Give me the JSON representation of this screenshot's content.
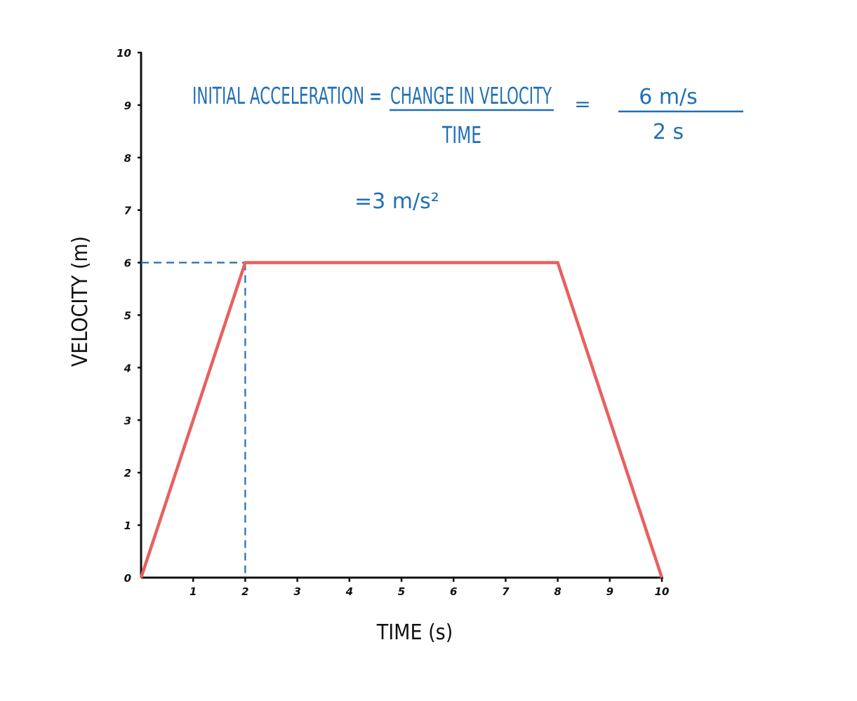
{
  "chart_data": {
    "type": "line",
    "title": "",
    "xlabel": "TIME (s)",
    "ylabel": "VELOCITY (m)",
    "xlim": [
      0,
      10
    ],
    "ylim": [
      0,
      10
    ],
    "x_ticks": [
      "1",
      "2",
      "3",
      "4",
      "5",
      "6",
      "7",
      "8",
      "9",
      "10"
    ],
    "y_ticks": [
      "0",
      "1",
      "2",
      "3",
      "4",
      "5",
      "6",
      "7",
      "8",
      "9",
      "10"
    ],
    "grid": false,
    "legend": null,
    "series": [
      {
        "name": "velocity",
        "color": "#e8605f",
        "x": [
          0,
          2,
          8,
          10
        ],
        "y": [
          0,
          6,
          6,
          0
        ]
      }
    ],
    "guides": [
      {
        "type": "dashed",
        "color": "#1f6fb5",
        "from": [
          0,
          6
        ],
        "to": [
          2,
          6
        ]
      },
      {
        "type": "dashed",
        "color": "#1f6fb5",
        "from": [
          2,
          6
        ],
        "to": [
          2,
          0
        ]
      }
    ],
    "annotations": {
      "lhs": "INITIAL ACCELERATION =",
      "frac1_num": "CHANGE IN VELOCITY",
      "frac1_den": "TIME",
      "equals": "=",
      "frac2_num": "6 m/s",
      "frac2_den": "2 s",
      "result": "=3 m/s²"
    }
  },
  "colors": {
    "axis": "#111111",
    "line": "#e8605f",
    "annotation": "#1f6fb5"
  }
}
